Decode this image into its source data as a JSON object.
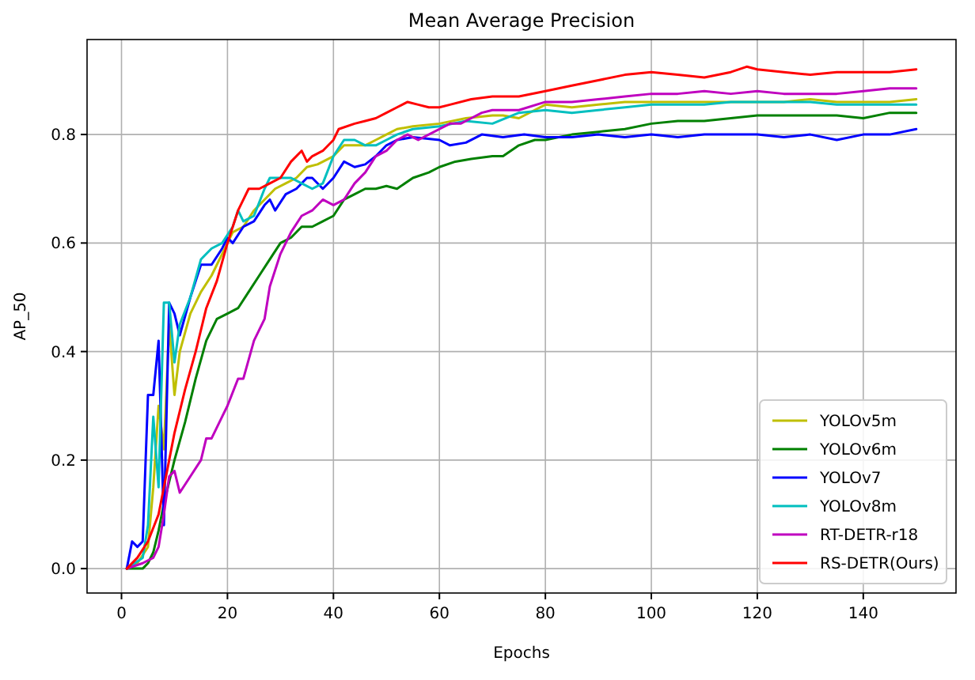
{
  "chart_data": {
    "type": "line",
    "title": "Mean Average Precision",
    "xlabel": "Epochs",
    "ylabel": "AP_50",
    "xlim": [
      -6.5,
      157.5
    ],
    "ylim": [
      -0.045,
      0.975
    ],
    "xticks": [
      0,
      20,
      40,
      60,
      80,
      100,
      120,
      140
    ],
    "yticks": [
      {
        "value": 0,
        "label": "0.0"
      },
      {
        "value": 0.2,
        "label": "0.2"
      },
      {
        "value": 0.4,
        "label": "0.4"
      },
      {
        "value": 0.6,
        "label": "0.6"
      },
      {
        "value": 0.8,
        "label": "0.8"
      }
    ],
    "grid": true,
    "legend": "bottom right",
    "marker": "none",
    "line_style": "solid",
    "series": [
      {
        "name": "YOLOv5m",
        "color": "#bfbf00",
        "x": [
          1,
          3,
          5,
          6,
          7,
          8,
          9,
          10,
          11,
          13,
          15,
          17,
          19,
          21,
          23,
          25,
          27,
          29,
          31,
          33,
          35,
          37,
          40,
          42,
          44,
          46,
          48,
          50,
          52,
          55,
          60,
          65,
          70,
          72,
          75,
          80,
          85,
          90,
          95,
          100,
          105,
          110,
          115,
          120,
          125,
          130,
          135,
          140,
          145,
          150
        ],
        "values": [
          0,
          0.01,
          0.04,
          0.15,
          0.3,
          0.22,
          0.45,
          0.32,
          0.4,
          0.47,
          0.51,
          0.54,
          0.58,
          0.62,
          0.63,
          0.66,
          0.68,
          0.7,
          0.71,
          0.72,
          0.74,
          0.745,
          0.76,
          0.78,
          0.78,
          0.78,
          0.79,
          0.8,
          0.81,
          0.815,
          0.82,
          0.83,
          0.835,
          0.835,
          0.83,
          0.855,
          0.85,
          0.855,
          0.86,
          0.86,
          0.86,
          0.86,
          0.86,
          0.86,
          0.86,
          0.865,
          0.86,
          0.86,
          0.86,
          0.865
        ]
      },
      {
        "name": "YOLOv6m",
        "color": "#008000",
        "x": [
          1,
          4,
          5,
          6,
          7,
          8,
          10,
          12,
          14,
          16,
          18,
          20,
          22,
          24,
          26,
          28,
          30,
          32,
          34,
          36,
          38,
          40,
          42,
          44,
          46,
          48,
          50,
          52,
          55,
          58,
          60,
          63,
          66,
          70,
          72,
          75,
          78,
          80,
          85,
          90,
          95,
          100,
          105,
          110,
          115,
          120,
          125,
          130,
          135,
          140,
          145,
          150
        ],
        "values": [
          0,
          0,
          0.01,
          0.03,
          0.07,
          0.12,
          0.2,
          0.27,
          0.35,
          0.42,
          0.46,
          0.47,
          0.48,
          0.51,
          0.54,
          0.57,
          0.6,
          0.61,
          0.63,
          0.63,
          0.64,
          0.65,
          0.68,
          0.69,
          0.7,
          0.7,
          0.705,
          0.7,
          0.72,
          0.73,
          0.74,
          0.75,
          0.755,
          0.76,
          0.76,
          0.78,
          0.79,
          0.79,
          0.8,
          0.805,
          0.81,
          0.82,
          0.825,
          0.825,
          0.83,
          0.835,
          0.835,
          0.835,
          0.835,
          0.83,
          0.84,
          0.84
        ]
      },
      {
        "name": "YOLOv7",
        "color": "#0000ff",
        "x": [
          1,
          2,
          3,
          4,
          5,
          6,
          7,
          8,
          9,
          10,
          11,
          13,
          15,
          17,
          19,
          20,
          21,
          23,
          25,
          27,
          28,
          29,
          31,
          33,
          35,
          36,
          38,
          40,
          42,
          44,
          46,
          48,
          50,
          52,
          55,
          60,
          62,
          65,
          68,
          72,
          76,
          80,
          85,
          90,
          95,
          100,
          105,
          110,
          115,
          120,
          125,
          130,
          135,
          140,
          145,
          150
        ],
        "values": [
          0,
          0.05,
          0.04,
          0.05,
          0.32,
          0.32,
          0.42,
          0.08,
          0.49,
          0.47,
          0.43,
          0.5,
          0.56,
          0.56,
          0.59,
          0.61,
          0.6,
          0.63,
          0.64,
          0.67,
          0.68,
          0.66,
          0.69,
          0.7,
          0.72,
          0.72,
          0.7,
          0.72,
          0.75,
          0.74,
          0.745,
          0.76,
          0.78,
          0.79,
          0.795,
          0.79,
          0.78,
          0.785,
          0.8,
          0.795,
          0.8,
          0.795,
          0.795,
          0.8,
          0.795,
          0.8,
          0.795,
          0.8,
          0.8,
          0.8,
          0.795,
          0.8,
          0.79,
          0.8,
          0.8,
          0.81
        ]
      },
      {
        "name": "YOLOv8m",
        "color": "#00bfbf",
        "x": [
          1,
          4,
          5,
          6,
          7,
          8,
          9,
          10,
          11,
          13,
          15,
          17,
          19,
          21,
          22,
          23,
          25,
          27,
          28,
          30,
          32,
          34,
          36,
          38,
          40,
          42,
          44,
          46,
          48,
          50,
          52,
          55,
          60,
          65,
          70,
          75,
          80,
          85,
          90,
          95,
          100,
          105,
          110,
          115,
          120,
          125,
          130,
          135,
          140,
          145,
          150
        ],
        "values": [
          0,
          0.02,
          0.08,
          0.28,
          0.15,
          0.49,
          0.49,
          0.38,
          0.45,
          0.5,
          0.57,
          0.59,
          0.6,
          0.63,
          0.66,
          0.64,
          0.65,
          0.7,
          0.72,
          0.72,
          0.72,
          0.71,
          0.7,
          0.71,
          0.76,
          0.79,
          0.79,
          0.78,
          0.78,
          0.79,
          0.8,
          0.81,
          0.815,
          0.825,
          0.82,
          0.84,
          0.845,
          0.84,
          0.845,
          0.85,
          0.855,
          0.855,
          0.855,
          0.86,
          0.86,
          0.86,
          0.86,
          0.855,
          0.855,
          0.855,
          0.855
        ]
      },
      {
        "name": "RT-DETR-r18",
        "color": "#bf00bf",
        "x": [
          1,
          4,
          6,
          7,
          8,
          9,
          10,
          11,
          13,
          15,
          16,
          17,
          19,
          20,
          22,
          23,
          25,
          27,
          28,
          30,
          32,
          34,
          36,
          38,
          40,
          42,
          44,
          46,
          48,
          50,
          52,
          54,
          56,
          58,
          60,
          62,
          64,
          66,
          68,
          70,
          75,
          80,
          85,
          90,
          95,
          100,
          105,
          110,
          115,
          120,
          125,
          130,
          135,
          140,
          145,
          150
        ],
        "values": [
          0,
          0.01,
          0.02,
          0.04,
          0.1,
          0.17,
          0.18,
          0.14,
          0.17,
          0.2,
          0.24,
          0.24,
          0.28,
          0.3,
          0.35,
          0.35,
          0.42,
          0.46,
          0.52,
          0.58,
          0.62,
          0.65,
          0.66,
          0.68,
          0.67,
          0.68,
          0.71,
          0.73,
          0.76,
          0.77,
          0.79,
          0.8,
          0.79,
          0.8,
          0.81,
          0.82,
          0.82,
          0.83,
          0.84,
          0.845,
          0.845,
          0.86,
          0.86,
          0.865,
          0.87,
          0.875,
          0.875,
          0.88,
          0.875,
          0.88,
          0.875,
          0.875,
          0.875,
          0.88,
          0.885,
          0.885
        ]
      },
      {
        "name": "RS-DETR(Ours)",
        "color": "#ff0000",
        "x": [
          1,
          3,
          5,
          7,
          9,
          10,
          12,
          14,
          16,
          18,
          20,
          22,
          24,
          26,
          28,
          30,
          32,
          34,
          35,
          36,
          38,
          40,
          41,
          44,
          46,
          48,
          50,
          52,
          54,
          56,
          58,
          60,
          62,
          66,
          70,
          72,
          75,
          80,
          85,
          90,
          95,
          100,
          105,
          110,
          115,
          118,
          120,
          125,
          130,
          135,
          140,
          145,
          150
        ],
        "values": [
          0,
          0.02,
          0.05,
          0.1,
          0.2,
          0.25,
          0.33,
          0.4,
          0.48,
          0.53,
          0.6,
          0.66,
          0.7,
          0.7,
          0.71,
          0.72,
          0.75,
          0.77,
          0.75,
          0.76,
          0.77,
          0.79,
          0.81,
          0.82,
          0.825,
          0.83,
          0.84,
          0.85,
          0.86,
          0.855,
          0.85,
          0.85,
          0.855,
          0.865,
          0.87,
          0.87,
          0.87,
          0.88,
          0.89,
          0.9,
          0.91,
          0.915,
          0.91,
          0.905,
          0.915,
          0.925,
          0.92,
          0.915,
          0.91,
          0.915,
          0.915,
          0.915,
          0.92
        ]
      }
    ]
  }
}
